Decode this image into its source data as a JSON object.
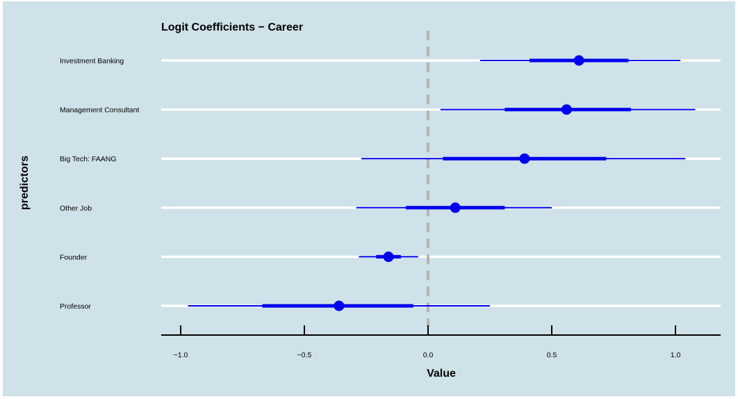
{
  "chart_data": {
    "type": "coefficient-plot",
    "title": "Logit Coefficients − Career",
    "xlabel": "Value",
    "ylabel": "predictors",
    "xlim": [
      -1.08,
      1.18
    ],
    "x_ticks": [
      -1.0,
      -0.5,
      0.0,
      0.5,
      1.0
    ],
    "x_tick_labels": [
      "−1.0",
      "−0.5",
      "0.0",
      "0.5",
      "1.0"
    ],
    "reference_line": 0.0,
    "grid": "horizontal",
    "categories": [
      "Investment Banking",
      "Management Consultant",
      "Big Tech: FAANG",
      "Other Job",
      "Founder",
      "Professor"
    ],
    "estimates": [
      0.61,
      0.56,
      0.39,
      0.11,
      -0.16,
      -0.36
    ],
    "inner_intervals": [
      [
        0.41,
        0.81
      ],
      [
        0.31,
        0.82
      ],
      [
        0.06,
        0.72
      ],
      [
        -0.09,
        0.31
      ],
      [
        -0.21,
        -0.11
      ],
      [
        -0.67,
        -0.06
      ]
    ],
    "outer_intervals": [
      [
        0.21,
        1.02
      ],
      [
        0.05,
        1.08
      ],
      [
        -0.27,
        1.04
      ],
      [
        -0.29,
        0.5
      ],
      [
        -0.28,
        -0.04
      ],
      [
        -0.97,
        0.25
      ]
    ]
  },
  "colors": {
    "panel_background": "#cfe1e9",
    "grid_line": "#ffffff",
    "series": "#0000ee",
    "reference_line": "#b5b5b5",
    "axis": "#000000"
  }
}
